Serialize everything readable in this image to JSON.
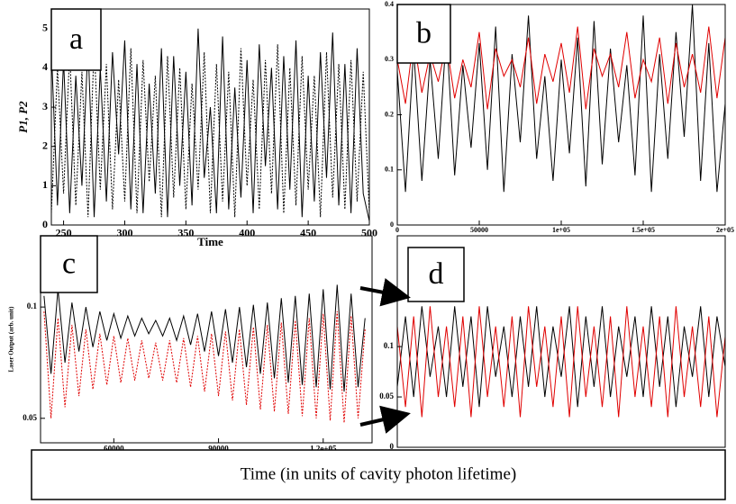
{
  "chart_data": [
    {
      "type": "line",
      "label": "a",
      "xlabel": "Time",
      "ylabel": "P1, P2",
      "x": [
        240,
        245,
        250,
        255,
        260,
        265,
        270,
        275,
        280,
        285,
        290,
        295,
        300,
        305,
        310,
        315,
        320,
        325,
        330,
        335,
        340,
        345,
        350,
        355,
        360,
        365,
        370,
        375,
        380,
        385,
        390,
        395,
        400,
        405,
        410,
        415,
        420,
        425,
        430,
        435,
        440,
        445,
        450,
        455,
        460,
        465,
        470,
        475,
        480,
        485,
        490,
        495,
        500
      ],
      "series": [
        {
          "color": "#000000",
          "dashed": false,
          "values": [
            4.5,
            0.5,
            4.2,
            0.3,
            3.8,
            1.0,
            4.6,
            0.2,
            4.0,
            0.6,
            4.4,
            1.8,
            4.7,
            0.4,
            4.1,
            0.3,
            3.6,
            0.8,
            4.5,
            0.2,
            4.3,
            1.0,
            3.9,
            0.5,
            5.0,
            1.2,
            3.0,
            0.3,
            4.8,
            0.4,
            3.5,
            0.7,
            4.2,
            0.3,
            4.6,
            1.5,
            4.0,
            0.4,
            4.3,
            0.9,
            4.7,
            0.2,
            3.8,
            0.6,
            4.4,
            1.2,
            4.9,
            0.5,
            4.1,
            0.3,
            4.5,
            0.8,
            0.1
          ]
        },
        {
          "color": "#000000",
          "dashed": true,
          "values": [
            0.3,
            4.0,
            0.8,
            4.4,
            0.5,
            3.9,
            0.2,
            4.6,
            0.9,
            4.1,
            0.4,
            3.7,
            0.6,
            4.5,
            0.3,
            4.2,
            1.1,
            3.8,
            0.2,
            4.3,
            0.7,
            4.0,
            0.4,
            3.6,
            0.9,
            4.4,
            0.3,
            4.1,
            0.6,
            3.9,
            0.2,
            4.5,
            1.0,
            3.7,
            0.4,
            4.2,
            0.8,
            4.6,
            0.3,
            4.0,
            0.5,
            4.3,
            0.9,
            3.8,
            0.2,
            4.4,
            0.7,
            4.1,
            0.4,
            4.2,
            0.6,
            3.9,
            0.3
          ]
        }
      ],
      "xlim": [
        240,
        500
      ],
      "xticks": [
        250,
        300,
        350,
        400,
        450,
        500
      ],
      "ylim": [
        0,
        5.5
      ],
      "yticks": [
        0,
        1,
        2,
        3,
        4,
        5
      ]
    },
    {
      "type": "line",
      "label": "b",
      "x": [
        0,
        5000,
        10000,
        15000,
        20000,
        25000,
        30000,
        35000,
        40000,
        45000,
        50000,
        55000,
        60000,
        65000,
        70000,
        75000,
        80000,
        85000,
        90000,
        95000,
        100000,
        105000,
        110000,
        115000,
        120000,
        125000,
        130000,
        135000,
        140000,
        145000,
        150000,
        155000,
        160000,
        165000,
        170000,
        175000,
        180000,
        185000,
        190000,
        195000,
        200000
      ],
      "series": [
        {
          "color": "#000000",
          "dashed": false,
          "values": [
            0.28,
            0.06,
            0.32,
            0.08,
            0.3,
            0.12,
            0.35,
            0.09,
            0.29,
            0.14,
            0.33,
            0.1,
            0.36,
            0.06,
            0.31,
            0.15,
            0.38,
            0.12,
            0.27,
            0.08,
            0.3,
            0.13,
            0.34,
            0.07,
            0.37,
            0.11,
            0.32,
            0.15,
            0.29,
            0.09,
            0.38,
            0.06,
            0.31,
            0.12,
            0.35,
            0.16,
            0.4,
            0.08,
            0.33,
            0.06,
            0.22
          ]
        },
        {
          "color": "#e00000",
          "dashed": false,
          "values": [
            0.3,
            0.22,
            0.34,
            0.24,
            0.31,
            0.26,
            0.33,
            0.23,
            0.3,
            0.25,
            0.35,
            0.21,
            0.32,
            0.27,
            0.3,
            0.25,
            0.34,
            0.22,
            0.31,
            0.26,
            0.33,
            0.24,
            0.36,
            0.21,
            0.32,
            0.27,
            0.31,
            0.25,
            0.35,
            0.23,
            0.3,
            0.26,
            0.34,
            0.22,
            0.33,
            0.25,
            0.31,
            0.24,
            0.36,
            0.23,
            0.34
          ]
        }
      ],
      "xlim": [
        0,
        200000
      ],
      "xticks": [
        0,
        50000,
        {
          "value": 100000,
          "label": "1e+05"
        },
        {
          "value": 150000,
          "label": "1.5e+05"
        },
        {
          "value": 200000,
          "label": "2e+05"
        }
      ],
      "ylim": [
        0,
        0.4
      ],
      "yticks": [
        0,
        0.1,
        0.2,
        0.3,
        0.4
      ]
    },
    {
      "type": "line",
      "label": "c",
      "ylabel": "Laser Output (arb. unit)",
      "x": [
        40000,
        42000,
        44000,
        46000,
        48000,
        50000,
        52000,
        54000,
        56000,
        58000,
        60000,
        62000,
        64000,
        66000,
        68000,
        70000,
        72000,
        74000,
        76000,
        78000,
        80000,
        82000,
        84000,
        86000,
        88000,
        90000,
        92000,
        94000,
        96000,
        98000,
        100000,
        102000,
        104000,
        106000,
        108000,
        110000,
        112000,
        114000,
        116000,
        118000,
        120000,
        122000,
        124000,
        126000,
        128000,
        130000,
        132000
      ],
      "series": [
        {
          "color": "#000000",
          "dashed": false,
          "values": [
            0.105,
            0.07,
            0.108,
            0.075,
            0.102,
            0.08,
            0.1,
            0.082,
            0.098,
            0.085,
            0.097,
            0.086,
            0.096,
            0.087,
            0.095,
            0.088,
            0.094,
            0.087,
            0.095,
            0.085,
            0.096,
            0.083,
            0.097,
            0.08,
            0.098,
            0.078,
            0.099,
            0.075,
            0.1,
            0.073,
            0.101,
            0.07,
            0.102,
            0.068,
            0.104,
            0.066,
            0.105,
            0.065,
            0.106,
            0.064,
            0.108,
            0.063,
            0.11,
            0.062,
            0.106,
            0.064,
            0.095
          ]
        },
        {
          "color": "#e00000",
          "dashed": true,
          "values": [
            0.098,
            0.05,
            0.095,
            0.055,
            0.092,
            0.06,
            0.09,
            0.063,
            0.088,
            0.065,
            0.087,
            0.066,
            0.086,
            0.067,
            0.085,
            0.068,
            0.084,
            0.067,
            0.085,
            0.066,
            0.086,
            0.064,
            0.087,
            0.062,
            0.088,
            0.06,
            0.089,
            0.058,
            0.09,
            0.056,
            0.091,
            0.054,
            0.092,
            0.053,
            0.093,
            0.052,
            0.094,
            0.051,
            0.095,
            0.05,
            0.097,
            0.049,
            0.098,
            0.048,
            0.096,
            0.05,
            0.09
          ]
        }
      ],
      "xlim": [
        39000,
        134000
      ],
      "xticks": [
        60000,
        90000,
        {
          "value": 120000,
          "label": "1.2e+05"
        }
      ],
      "ylim": [
        0.039,
        0.132
      ],
      "yticks": [
        0.05,
        0.1
      ]
    },
    {
      "type": "line",
      "label": "d",
      "x": [
        0,
        1,
        2,
        3,
        4,
        5,
        6,
        7,
        8,
        9,
        10,
        11,
        12,
        13,
        14,
        15,
        16,
        17,
        18,
        19,
        20,
        21,
        22,
        23,
        24,
        25,
        26,
        27,
        28,
        29,
        30,
        31,
        32,
        33,
        34,
        35,
        36,
        37,
        38,
        39,
        40
      ],
      "series": [
        {
          "color": "#000000",
          "dashed": false,
          "values": [
            0.06,
            0.13,
            0.05,
            0.14,
            0.07,
            0.12,
            0.05,
            0.14,
            0.06,
            0.13,
            0.04,
            0.14,
            0.07,
            0.12,
            0.05,
            0.13,
            0.06,
            0.14,
            0.05,
            0.12,
            0.07,
            0.14,
            0.04,
            0.13,
            0.06,
            0.14,
            0.05,
            0.12,
            0.07,
            0.13,
            0.05,
            0.14,
            0.06,
            0.13,
            0.04,
            0.12,
            0.07,
            0.14,
            0.05,
            0.13,
            0.08
          ]
        },
        {
          "color": "#e00000",
          "dashed": false,
          "values": [
            0.12,
            0.04,
            0.13,
            0.03,
            0.14,
            0.05,
            0.12,
            0.04,
            0.13,
            0.03,
            0.14,
            0.05,
            0.12,
            0.04,
            0.13,
            0.03,
            0.14,
            0.06,
            0.12,
            0.04,
            0.13,
            0.03,
            0.14,
            0.05,
            0.12,
            0.04,
            0.13,
            0.03,
            0.14,
            0.05,
            0.12,
            0.04,
            0.13,
            0.03,
            0.14,
            0.05,
            0.12,
            0.04,
            0.13,
            0.03,
            0.11
          ]
        }
      ],
      "xlim": [
        0,
        40
      ],
      "ylim": [
        0,
        0.21
      ],
      "yticks": [
        0,
        0.05,
        0.1
      ]
    }
  ],
  "caption": "Time (in units of cavity photon lifetime)"
}
